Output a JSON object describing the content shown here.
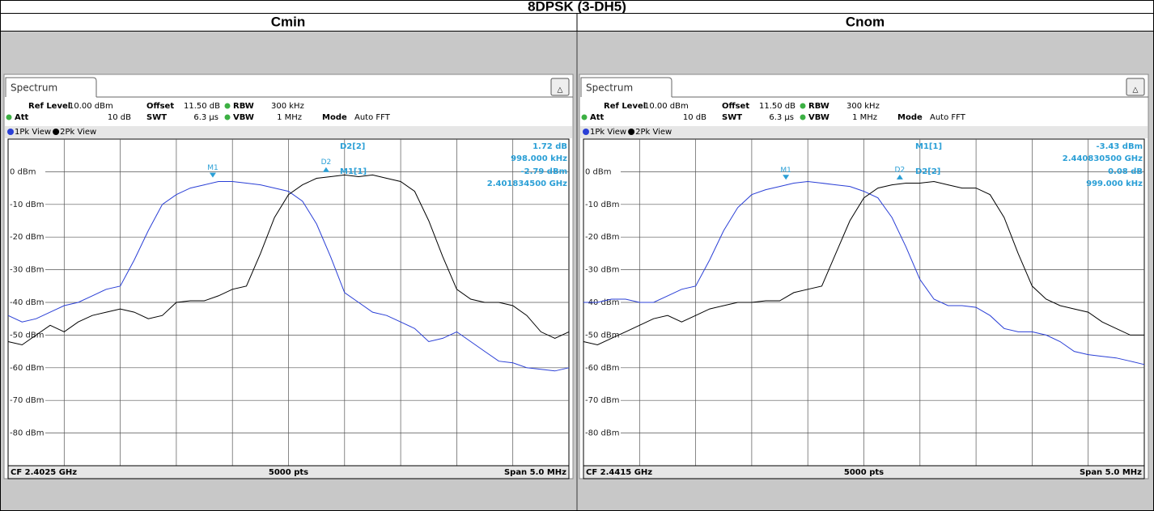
{
  "title": "8DPSK (3-DH5)",
  "chart_data": [
    {
      "type": "line",
      "title": "Cmin",
      "tab": "Spectrum",
      "settings": [
        {
          "label": "Ref Level",
          "value": "10.00 dBm"
        },
        {
          "label": "Offset",
          "value": "11.50 dB"
        },
        {
          "label": "RBW",
          "value": "300 kHz"
        },
        {
          "label": "Att",
          "value": "10 dB"
        },
        {
          "label": "SWT",
          "value": "6.3 µs"
        },
        {
          "label": "VBW",
          "value": "1 MHz"
        },
        {
          "label": "Mode",
          "value": "Auto FFT"
        }
      ],
      "x": [
        0,
        125,
        250,
        375,
        500,
        625,
        750,
        875,
        1000,
        1125,
        1250,
        1375,
        1500,
        1625,
        1750,
        1875,
        2000,
        2125,
        2250,
        2375,
        2500,
        2625,
        2750,
        2875,
        3000,
        3125,
        3250,
        3375,
        3500,
        3625,
        3750,
        3875,
        4000,
        4125,
        4250,
        4375,
        4500,
        4625,
        4750,
        4875,
        5000
      ],
      "xlim": [
        0,
        5000
      ],
      "series": [
        {
          "name": "1Pk View",
          "color": "#2a3fd6",
          "values": [
            -44,
            -46,
            -45,
            -43,
            -41,
            -40,
            -38,
            -36,
            -35,
            -27,
            -18,
            -10,
            -7,
            -5,
            -4,
            -3,
            -3,
            -3.5,
            -4,
            -5,
            -6,
            -9,
            -16,
            -26,
            -37,
            -40,
            -43,
            -44,
            -46,
            -48,
            -52,
            -51,
            -49,
            -52,
            -55,
            -58,
            -58.5,
            -60,
            -60.5,
            -61,
            -60
          ]
        },
        {
          "name": "2Pk View",
          "color": "#000000",
          "values": [
            -52,
            -53,
            -50,
            -47,
            -49,
            -46,
            -44,
            -43,
            -42,
            -43,
            -45,
            -44,
            -40,
            -39.5,
            -39.5,
            -38,
            -36,
            -35,
            -25,
            -14,
            -7,
            -4,
            -2,
            -1.5,
            -1,
            -1.5,
            -1,
            -2,
            -3,
            -6,
            -15,
            -26,
            -36,
            -39,
            -40,
            -40,
            -41,
            -44,
            -49,
            -51,
            -49
          ]
        }
      ],
      "ylim": [
        -90,
        10
      ],
      "yticks": [
        {
          "value": 0,
          "label": "0 dBm"
        },
        {
          "value": -10,
          "label": "-10 dBm"
        },
        {
          "value": -20,
          "label": "-20 dBm"
        },
        {
          "value": -30,
          "label": "-30 dBm"
        },
        {
          "value": -40,
          "label": "-40 dBm"
        },
        {
          "value": -50,
          "label": "-50 dBm"
        },
        {
          "value": -60,
          "label": "-60 dBm"
        },
        {
          "value": -70,
          "label": "-70 dBm"
        },
        {
          "value": -80,
          "label": "-80 dBm"
        }
      ],
      "markers": [
        {
          "label": "M1",
          "x": 1825,
          "y": -2.79
        },
        {
          "label": "D2",
          "x": 2835,
          "y": -1.07
        }
      ],
      "readouts": [
        {
          "label": "D2[2]",
          "lines": [
            "1.72 dB",
            "998.000 kHz"
          ]
        },
        {
          "label": "M1[1]",
          "lines": [
            "-2.79 dBm",
            "2.401834500 GHz"
          ]
        }
      ],
      "footer": [
        "CF 2.4025 GHz",
        "5000 pts",
        "Span 5.0 MHz"
      ]
    },
    {
      "type": "line",
      "title": "Cnom",
      "tab": "Spectrum",
      "settings": [
        {
          "label": "Ref Level",
          "value": "10.00 dBm"
        },
        {
          "label": "Offset",
          "value": "11.50 dB"
        },
        {
          "label": "RBW",
          "value": "300 kHz"
        },
        {
          "label": "Att",
          "value": "10 dB"
        },
        {
          "label": "SWT",
          "value": "6.3 µs"
        },
        {
          "label": "VBW",
          "value": "1 MHz"
        },
        {
          "label": "Mode",
          "value": "Auto FFT"
        }
      ],
      "x": [
        0,
        125,
        250,
        375,
        500,
        625,
        750,
        875,
        1000,
        1125,
        1250,
        1375,
        1500,
        1625,
        1750,
        1875,
        2000,
        2125,
        2250,
        2375,
        2500,
        2625,
        2750,
        2875,
        3000,
        3125,
        3250,
        3375,
        3500,
        3625,
        3750,
        3875,
        4000,
        4125,
        4250,
        4375,
        4500,
        4625,
        4750,
        4875,
        5000
      ],
      "xlim": [
        0,
        5000
      ],
      "series": [
        {
          "name": "1Pk View",
          "color": "#2a3fd6",
          "values": [
            -40,
            -40,
            -39,
            -39,
            -40,
            -40,
            -38,
            -36,
            -35,
            -27,
            -18,
            -11,
            -7,
            -5.5,
            -4.5,
            -3.5,
            -3,
            -3.5,
            -4,
            -4.5,
            -6,
            -8,
            -14,
            -23,
            -33,
            -39,
            -41,
            -41,
            -41.5,
            -44,
            -48,
            -49,
            -49,
            -50,
            -52,
            -55,
            -56,
            -56.5,
            -57,
            -58,
            -59
          ]
        },
        {
          "name": "2Pk View",
          "color": "#000000",
          "values": [
            -52,
            -53,
            -51,
            -49,
            -47,
            -45,
            -44,
            -46,
            -44,
            -42,
            -41,
            -40,
            -40,
            -39.5,
            -39.5,
            -37,
            -36,
            -35,
            -25,
            -15,
            -8,
            -5,
            -4,
            -3.5,
            -3.5,
            -3,
            -4,
            -5,
            -5,
            -7,
            -14,
            -25,
            -35,
            -39,
            -41,
            -42,
            -43,
            -46,
            -48,
            -50,
            -50
          ]
        }
      ],
      "ylim": [
        -90,
        10
      ],
      "yticks": [
        {
          "value": 0,
          "label": "0 dBm"
        },
        {
          "value": -10,
          "label": "-10 dBm"
        },
        {
          "value": -20,
          "label": "-20 dBm"
        },
        {
          "value": -30,
          "label": "-30 dBm"
        },
        {
          "value": -40,
          "label": "-40 dBm"
        },
        {
          "value": -50,
          "label": "-50 dBm"
        },
        {
          "value": -60,
          "label": "-60 dBm"
        },
        {
          "value": -70,
          "label": "-70 dBm"
        },
        {
          "value": -80,
          "label": "-80 dBm"
        }
      ],
      "markers": [
        {
          "label": "M1",
          "x": 1805,
          "y": -3.43
        },
        {
          "label": "D2",
          "x": 2820,
          "y": -3.35
        }
      ],
      "readouts": [
        {
          "label": "M1[1]",
          "lines": [
            "-3.43 dBm",
            "2.440830500 GHz"
          ]
        },
        {
          "label": "D2[2]",
          "lines": [
            "0.08 dB",
            "999.000 kHz"
          ]
        }
      ],
      "footer": [
        "CF 2.4415 GHz",
        "5000 pts",
        "Span 5.0 MHz"
      ]
    }
  ]
}
